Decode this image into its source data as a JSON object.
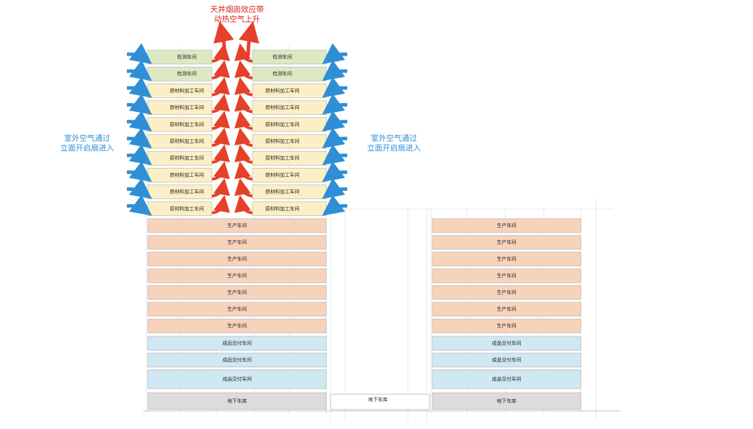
{
  "annotations": {
    "chimney": [
      "天井烟囱效应带",
      "动热空气上升"
    ],
    "left_air": [
      "室外空气通过",
      "立面开启扇进入"
    ],
    "right_air": [
      "室外空气通过",
      "立面开启扇进入"
    ]
  },
  "tower": {
    "upper_floors": [
      {
        "left": "检测车间",
        "right": "检测车间"
      },
      {
        "left": "检测车间",
        "right": "检测车间"
      },
      {
        "left": "原材料加工车间",
        "right": "原材料加工车间"
      },
      {
        "left": "原材料加工车间",
        "right": "原材料加工车间"
      },
      {
        "left": "原材料加工车间",
        "right": "原材料加工车间"
      },
      {
        "left": "原材料加工车间",
        "right": "原材料加工车间"
      },
      {
        "left": "原材料加工车间",
        "right": "原材料加工车间"
      },
      {
        "left": "原材料加工车间",
        "right": "原材料加工车间"
      },
      {
        "left": "原材料加工车间",
        "right": "原材料加工车间"
      },
      {
        "left": "原材料加工车间",
        "right": "原材料加工车间"
      }
    ],
    "lower_floors": [
      "生产车间",
      "生产车间",
      "生产车间",
      "生产车间",
      "生产车间",
      "生产车间",
      "生产车间",
      "成品交付车间",
      "成品交付车间",
      "成品交付车间",
      "地下车库"
    ]
  },
  "podium": {
    "basement": "地下车库"
  },
  "annex": {
    "floors": [
      "生产车间",
      "生产车间",
      "生产车间",
      "生产车间",
      "生产车间",
      "生产车间",
      "生产车间",
      "成品交付车间",
      "成品交付车间",
      "成品交付车间",
      "地下车库"
    ]
  }
}
